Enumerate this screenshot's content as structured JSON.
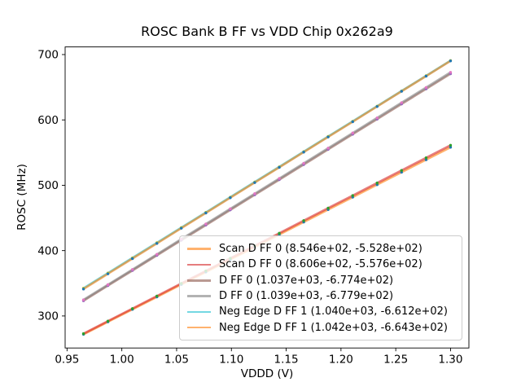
{
  "chart_data": {
    "type": "line",
    "title": "ROSC Bank B FF vs VDD Chip 0x262a9",
    "xlabel": "VDDD (V)",
    "ylabel": "ROSC (MHz)",
    "xlim": [
      0.94825,
      1.31675
    ],
    "ylim": [
      251.0,
      711.7
    ],
    "x_ticks": [
      0.95,
      1.0,
      1.05,
      1.1,
      1.15,
      1.2,
      1.25,
      1.3
    ],
    "x_tick_labels": [
      "0.95",
      "1.00",
      "1.05",
      "1.10",
      "1.15",
      "1.20",
      "1.25",
      "1.30"
    ],
    "y_ticks": [
      300,
      400,
      500,
      600,
      700
    ],
    "y_tick_labels": [
      "300",
      "400",
      "500",
      "600",
      "700"
    ],
    "grid": false,
    "legend_position": "lower right",
    "x": [
      0.965,
      0.9873,
      1.0097,
      1.032,
      1.0543,
      1.0767,
      1.099,
      1.1213,
      1.1437,
      1.166,
      1.1883,
      1.2107,
      1.233,
      1.2553,
      1.2777,
      1.3
    ],
    "series": [
      {
        "name": "Scan D FF 0",
        "legend_label": "Scan D FF 0 (8.546e+02, -5.528e+02)",
        "fit_slope": 854.6,
        "fit_intercept": -552.8,
        "line_color": "#ff7f0e",
        "line_alpha": 0.6,
        "marker_color": "#1f77b4",
        "values": [
          271.9,
          291.0,
          310.1,
          329.1,
          348.2,
          367.3,
          386.4,
          405.5,
          424.6,
          443.7,
          462.8,
          481.8,
          500.9,
          520.0,
          539.1,
          558.2
        ]
      },
      {
        "name": "Scan D FF 0",
        "legend_label": "Scan D FF 0 (8.606e+02, -5.576e+02)",
        "fit_slope": 860.6,
        "fit_intercept": -557.6,
        "line_color": "#d62728",
        "line_alpha": 0.6,
        "marker_color": "#2ca02c",
        "values": [
          272.9,
          292.1,
          311.3,
          330.5,
          349.8,
          369.0,
          388.2,
          407.4,
          426.6,
          445.9,
          465.1,
          484.3,
          503.5,
          522.7,
          542.0,
          561.2
        ]
      },
      {
        "name": "D FF 0",
        "legend_label": "D FF 0 (1.037e+03, -6.774e+02)",
        "fit_slope": 1037,
        "fit_intercept": -677.4,
        "line_color": "#8c564b",
        "line_alpha": 0.6,
        "marker_color": "#9467bd",
        "values": [
          323.3,
          346.5,
          369.6,
          392.8,
          415.9,
          439.1,
          462.3,
          485.4,
          508.6,
          531.7,
          554.9,
          578.1,
          601.2,
          624.4,
          647.5,
          670.7
        ]
      },
      {
        "name": "D FF 0",
        "legend_label": "D FF 0 (1.039e+03, -6.779e+02)",
        "fit_slope": 1039,
        "fit_intercept": -677.9,
        "line_color": "#7f7f7f",
        "line_alpha": 0.6,
        "marker_color": "#e377c2",
        "values": [
          324.7,
          347.9,
          371.1,
          394.3,
          417.6,
          440.8,
          464.0,
          487.2,
          510.4,
          533.6,
          556.8,
          580.0,
          603.2,
          626.4,
          649.6,
          672.8
        ]
      },
      {
        "name": "Neg Edge D FF 1",
        "legend_label": "Neg Edge D FF 1 (1.040e+03, -6.612e+02)",
        "fit_slope": 1040,
        "fit_intercept": -661.2,
        "line_color": "#17becf",
        "line_alpha": 0.6,
        "marker_color": "#bcbd22",
        "values": [
          342.4,
          365.6,
          388.9,
          412.1,
          435.3,
          458.5,
          481.8,
          505.0,
          528.2,
          551.4,
          574.7,
          597.9,
          621.1,
          644.3,
          667.6,
          690.8
        ]
      },
      {
        "name": "Neg Edge D FF 1",
        "legend_label": "Neg Edge D FF 1 (1.042e+03, -6.643e+02)",
        "fit_slope": 1042,
        "fit_intercept": -664.3,
        "line_color": "#ff7f0e",
        "line_alpha": 0.6,
        "marker_color": "#1f77b4",
        "values": [
          341.2,
          364.5,
          387.8,
          411.0,
          434.3,
          457.6,
          480.9,
          504.1,
          527.4,
          550.7,
          573.9,
          597.2,
          620.5,
          643.8,
          667.0,
          690.3
        ]
      }
    ]
  }
}
